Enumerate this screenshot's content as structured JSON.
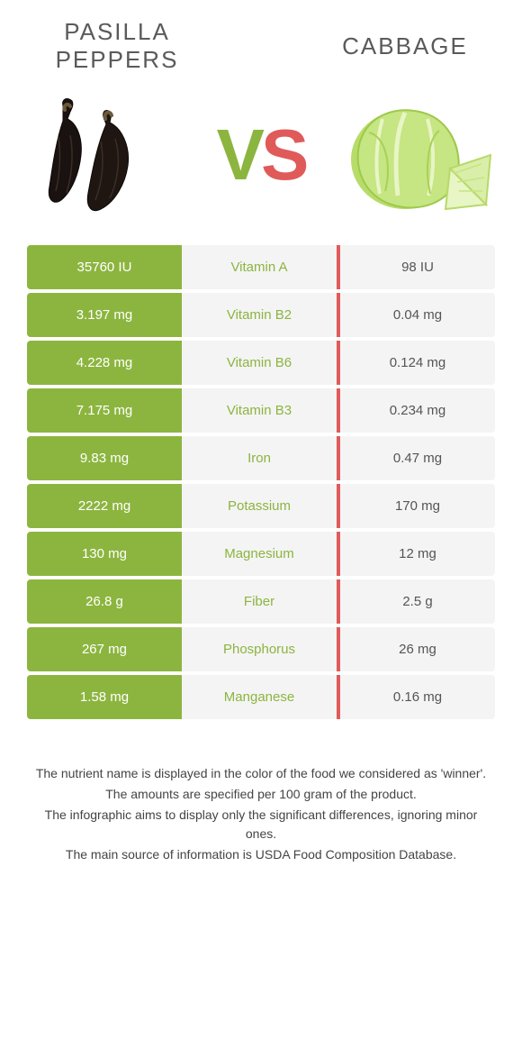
{
  "header": {
    "left_title": "Pasilla peppers",
    "right_title": "Cabbage",
    "vs_v": "V",
    "vs_s": "S"
  },
  "colors": {
    "left": "#8cb53f",
    "right": "#e05a5a",
    "mid_bg": "#f4f4f4",
    "text": "#5a5a5a"
  },
  "rows": [
    {
      "left": "35760 IU",
      "nutrient": "Vitamin A",
      "right": "98 IU",
      "winner": "left"
    },
    {
      "left": "3.197 mg",
      "nutrient": "Vitamin B2",
      "right": "0.04 mg",
      "winner": "left"
    },
    {
      "left": "4.228 mg",
      "nutrient": "Vitamin B6",
      "right": "0.124 mg",
      "winner": "left"
    },
    {
      "left": "7.175 mg",
      "nutrient": "Vitamin B3",
      "right": "0.234 mg",
      "winner": "left"
    },
    {
      "left": "9.83 mg",
      "nutrient": "Iron",
      "right": "0.47 mg",
      "winner": "left"
    },
    {
      "left": "2222 mg",
      "nutrient": "Potassium",
      "right": "170 mg",
      "winner": "left"
    },
    {
      "left": "130 mg",
      "nutrient": "Magnesium",
      "right": "12 mg",
      "winner": "left"
    },
    {
      "left": "26.8 g",
      "nutrient": "Fiber",
      "right": "2.5 g",
      "winner": "left"
    },
    {
      "left": "267 mg",
      "nutrient": "Phosphorus",
      "right": "26 mg",
      "winner": "left"
    },
    {
      "left": "1.58 mg",
      "nutrient": "Manganese",
      "right": "0.16 mg",
      "winner": "left"
    }
  ],
  "footer": {
    "line1": "The nutrient name is displayed in the color of the food we considered as 'winner'.",
    "line2": "The amounts are specified per 100 gram of the product.",
    "line3": "The infographic aims to display only the significant differences, ignoring minor ones.",
    "line4": "The main source of information is USDA Food Composition Database."
  }
}
